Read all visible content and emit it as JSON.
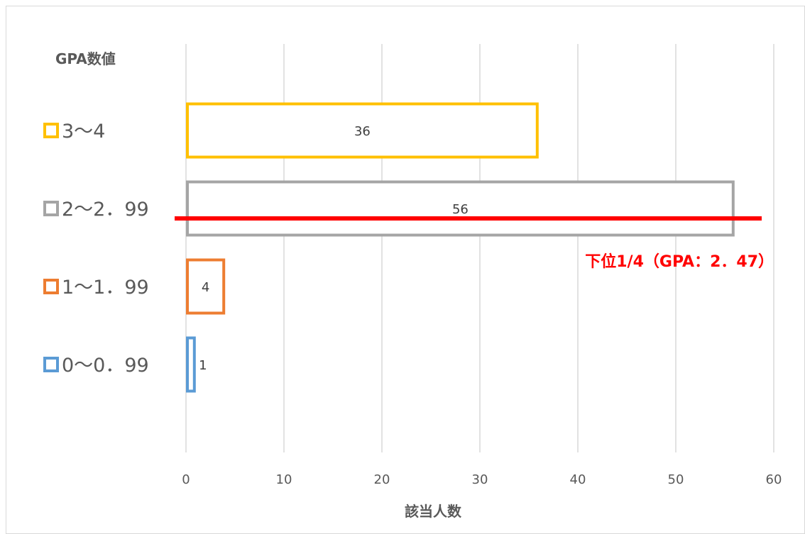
{
  "chart_data": {
    "type": "bar",
    "orientation": "horizontal",
    "ylabel": "GPA数値",
    "xlabel": "該当人数",
    "xlim": [
      0,
      60
    ],
    "xticks": [
      0,
      10,
      20,
      30,
      40,
      50,
      60
    ],
    "grid": true,
    "categories": [
      "3〜4",
      "2〜2．99",
      "1〜1．99",
      "0〜0．99"
    ],
    "values": [
      36,
      56,
      4,
      1
    ],
    "colors": [
      "#ffc000",
      "#a5a5a5",
      "#ed7d31",
      "#5b9bd5"
    ],
    "annotation": {
      "text": "下位1/4（GPA：2．47）",
      "color": "#ff0000",
      "category": "2〜2．99"
    }
  }
}
